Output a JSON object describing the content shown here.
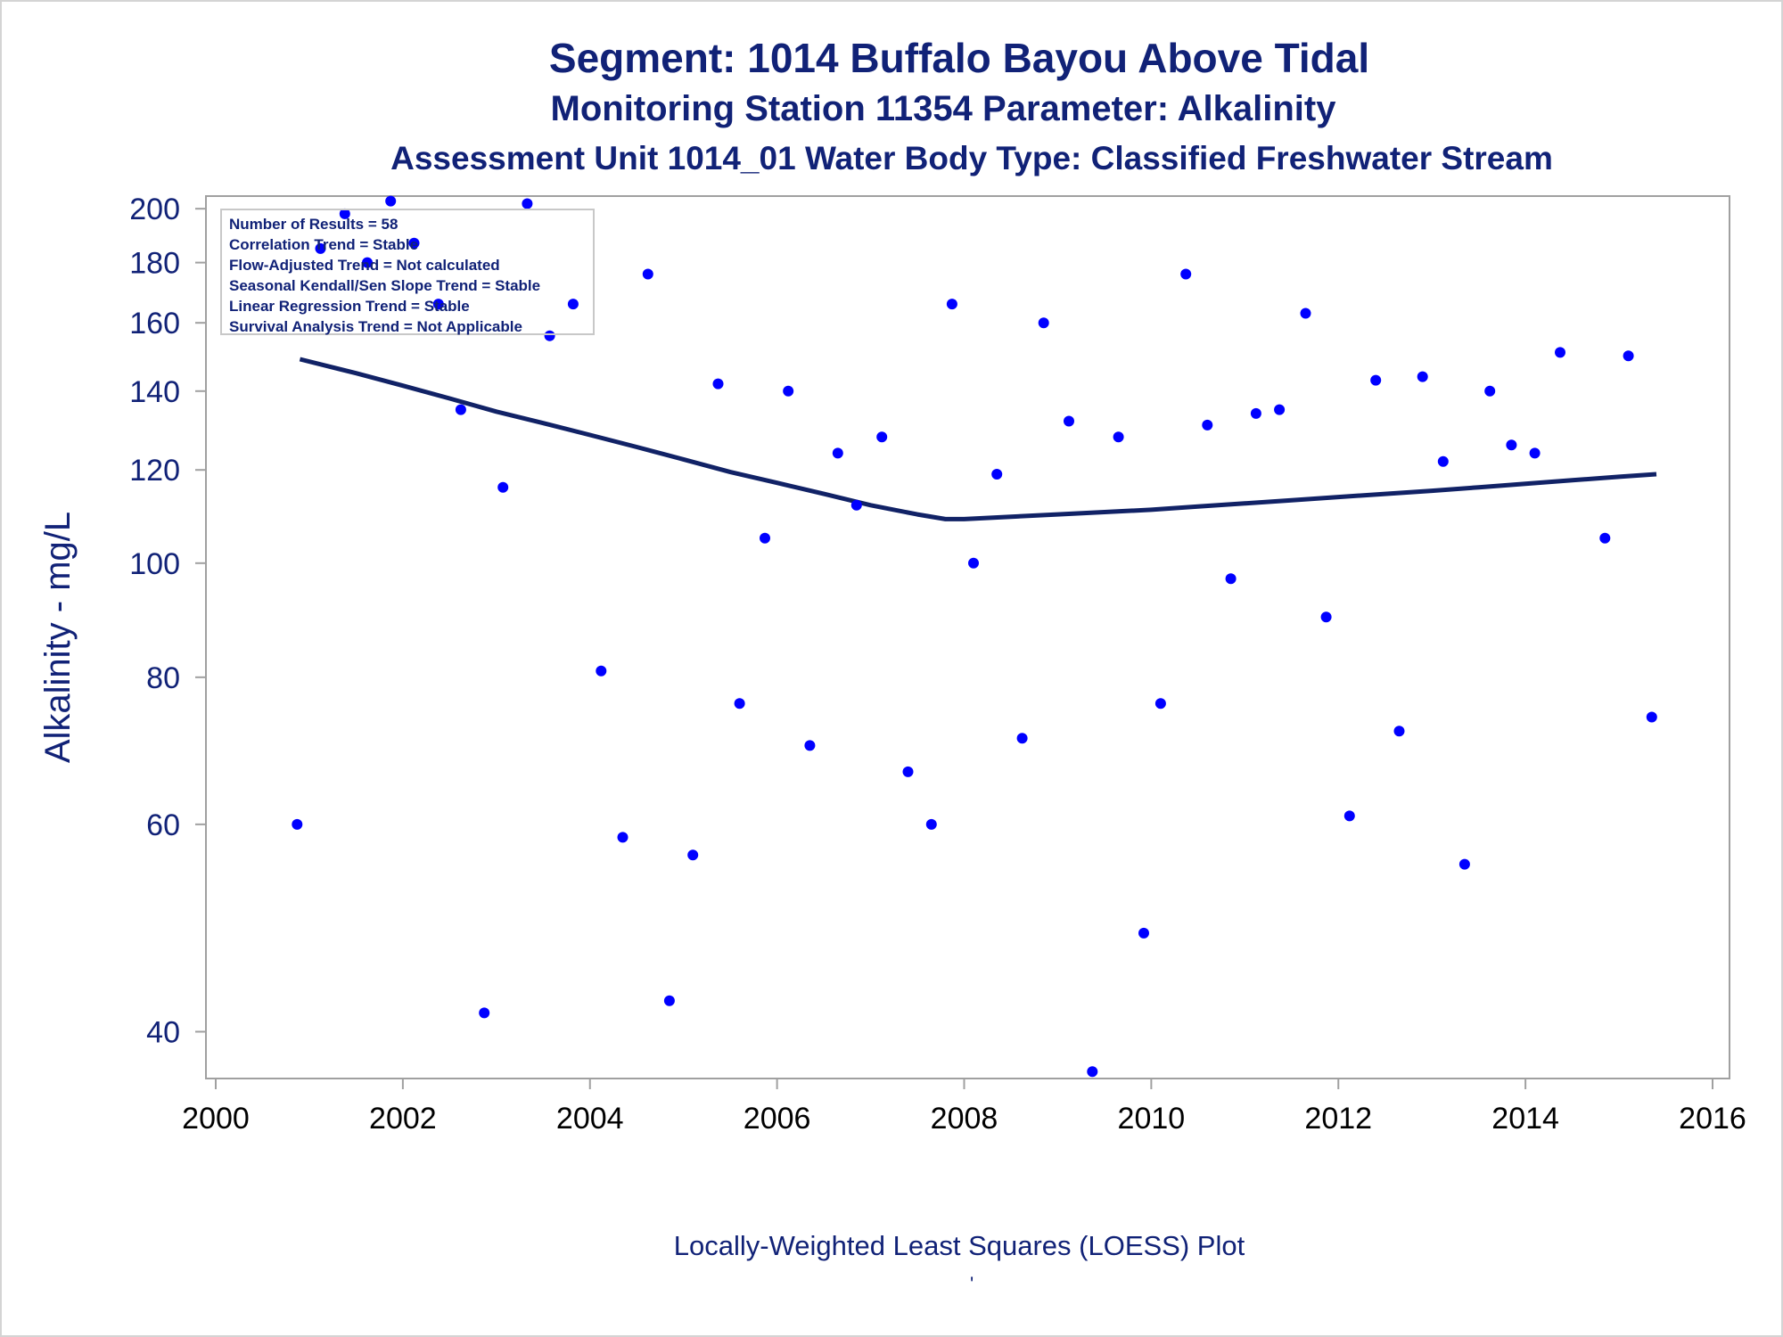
{
  "titles": {
    "line1": "Segment: 1014  Buffalo Bayou Above Tidal",
    "line2": "Monitoring Station 11354 Parameter: Alkalinity",
    "line3": "Assessment Unit 1014_01   Water Body Type: Classified Freshwater Stream"
  },
  "footnote": "Locally-Weighted Least Squares (LOESS) Plot",
  "footnote_mark": "'",
  "info": [
    "Number of Results = 58",
    "Correlation Trend = Stable",
    "Flow-Adjusted Trend = Not calculated",
    "Seasonal Kendall/Sen Slope Trend = Stable",
    "Linear Regression Trend = Stable",
    "Survival Analysis Trend = Not Applicable"
  ],
  "colors": {
    "text": "#112277",
    "points": "#0000ff",
    "loess": "#112266",
    "axis": "#a0a0a0"
  },
  "chart_data": {
    "type": "scatter",
    "ylabel": "Alkalinity - mg/L",
    "xlabel": "",
    "yscale": "log",
    "xlim": [
      2000,
      2016
    ],
    "ylim": [
      36.5,
      205
    ],
    "xticks": [
      2000,
      2002,
      2004,
      2006,
      2008,
      2010,
      2012,
      2014,
      2016
    ],
    "yticks": [
      40,
      60,
      80,
      100,
      120,
      140,
      160,
      180,
      200
    ],
    "grid": false,
    "points": [
      [
        2000.87,
        60
      ],
      [
        2001.12,
        185
      ],
      [
        2001.38,
        198
      ],
      [
        2001.62,
        180
      ],
      [
        2001.87,
        203
      ],
      [
        2002.12,
        187
      ],
      [
        2002.38,
        166
      ],
      [
        2002.62,
        135
      ],
      [
        2002.87,
        41.5
      ],
      [
        2003.07,
        116
      ],
      [
        2003.33,
        202
      ],
      [
        2003.57,
        156
      ],
      [
        2003.82,
        166
      ],
      [
        2004.12,
        81
      ],
      [
        2004.35,
        58.5
      ],
      [
        2004.62,
        176
      ],
      [
        2004.85,
        42.5
      ],
      [
        2005.1,
        56.5
      ],
      [
        2005.37,
        142
      ],
      [
        2005.6,
        76
      ],
      [
        2005.87,
        105
      ],
      [
        2006.12,
        140
      ],
      [
        2006.35,
        70
      ],
      [
        2006.65,
        124
      ],
      [
        2006.85,
        112
      ],
      [
        2007.12,
        128
      ],
      [
        2007.4,
        66.5
      ],
      [
        2007.65,
        60
      ],
      [
        2007.87,
        166
      ],
      [
        2008.1,
        100
      ],
      [
        2008.35,
        119
      ],
      [
        2008.62,
        71
      ],
      [
        2008.85,
        160
      ],
      [
        2009.12,
        132
      ],
      [
        2009.37,
        37
      ],
      [
        2009.65,
        128
      ],
      [
        2009.92,
        48.5
      ],
      [
        2010.1,
        76
      ],
      [
        2010.37,
        176
      ],
      [
        2010.6,
        131
      ],
      [
        2010.85,
        97
      ],
      [
        2011.12,
        134
      ],
      [
        2011.37,
        135
      ],
      [
        2011.65,
        163
      ],
      [
        2011.87,
        90
      ],
      [
        2012.12,
        61
      ],
      [
        2012.4,
        143
      ],
      [
        2012.65,
        72
      ],
      [
        2012.9,
        144
      ],
      [
        2013.12,
        122
      ],
      [
        2013.35,
        55.5
      ],
      [
        2013.62,
        140
      ],
      [
        2013.85,
        126
      ],
      [
        2014.1,
        124
      ],
      [
        2014.37,
        151
      ],
      [
        2014.85,
        105
      ],
      [
        2015.1,
        150
      ],
      [
        2015.35,
        74
      ]
    ],
    "loess": [
      [
        2000.9,
        149
      ],
      [
        2001.5,
        145
      ],
      [
        2002.0,
        141.5
      ],
      [
        2002.5,
        138
      ],
      [
        2003.0,
        134.5
      ],
      [
        2003.5,
        131.5
      ],
      [
        2004.0,
        128.5
      ],
      [
        2004.5,
        125.5
      ],
      [
        2005.0,
        122.5
      ],
      [
        2005.5,
        119.5
      ],
      [
        2006.0,
        117
      ],
      [
        2006.5,
        114.5
      ],
      [
        2007.0,
        112
      ],
      [
        2007.5,
        110
      ],
      [
        2007.8,
        109
      ],
      [
        2008.0,
        109
      ],
      [
        2008.5,
        109.5
      ],
      [
        2009.0,
        110
      ],
      [
        2009.5,
        110.5
      ],
      [
        2010.0,
        111
      ],
      [
        2010.5,
        111.7
      ],
      [
        2011.0,
        112.4
      ],
      [
        2011.5,
        113.1
      ],
      [
        2012.0,
        113.8
      ],
      [
        2012.5,
        114.5
      ],
      [
        2013.0,
        115.2
      ],
      [
        2013.5,
        116
      ],
      [
        2014.0,
        116.8
      ],
      [
        2014.5,
        117.6
      ],
      [
        2015.0,
        118.4
      ],
      [
        2015.4,
        119
      ]
    ]
  }
}
